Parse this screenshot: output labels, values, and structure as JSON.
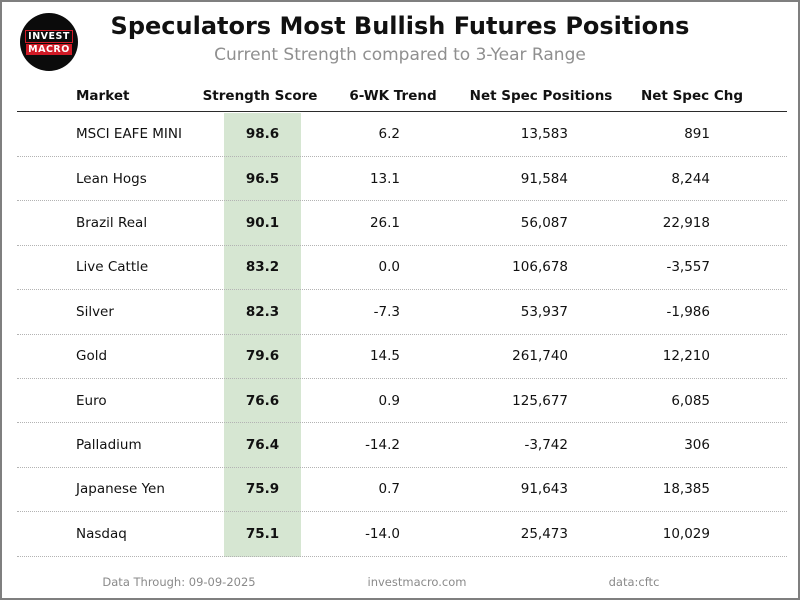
{
  "header": {
    "title": "Speculators Most Bullish Futures Positions",
    "subtitle": "Current Strength compared to 3-Year Range",
    "logo": {
      "line1": "INVEST",
      "line2": "MACRO"
    }
  },
  "footer": {
    "data_through": "Data Through: 09-09-2025",
    "website": "investmacro.com",
    "source": "data:cftc"
  },
  "colors": {
    "score_band": "#d6e6d2",
    "logo_red": "#d01a26",
    "frame_border": "#7f7f7f",
    "subtitle_gray": "#8f8f8f"
  },
  "chart_data": {
    "type": "table",
    "title": "Speculators Most Bullish Futures Positions",
    "subtitle": "Current Strength compared to 3-Year Range",
    "columns": [
      "Market",
      "Strength Score",
      "6-WK Trend",
      "Net Spec Positions",
      "Net Spec Chg"
    ],
    "rows": [
      [
        "MSCI EAFE MINI",
        "98.6",
        "6.2",
        "13,583",
        "891"
      ],
      [
        "Lean Hogs",
        "96.5",
        "13.1",
        "91,584",
        "8,244"
      ],
      [
        "Brazil Real",
        "90.1",
        "26.1",
        "56,087",
        "22,918"
      ],
      [
        "Live Cattle",
        "83.2",
        "0.0",
        "106,678",
        "-3,557"
      ],
      [
        "Silver",
        "82.3",
        "-7.3",
        "53,937",
        "-1,986"
      ],
      [
        "Gold",
        "79.6",
        "14.5",
        "261,740",
        "12,210"
      ],
      [
        "Euro",
        "76.6",
        "0.9",
        "125,677",
        "6,085"
      ],
      [
        "Palladium",
        "76.4",
        "-14.2",
        "-3,742",
        "306"
      ],
      [
        "Japanese Yen",
        "75.9",
        "0.7",
        "91,643",
        "18,385"
      ],
      [
        "Nasdaq",
        "75.1",
        "-14.0",
        "25,473",
        "10,029"
      ]
    ],
    "layout": {
      "score_column_highlighted": true,
      "row_separator": "dotted",
      "header_separator": "solid"
    }
  }
}
